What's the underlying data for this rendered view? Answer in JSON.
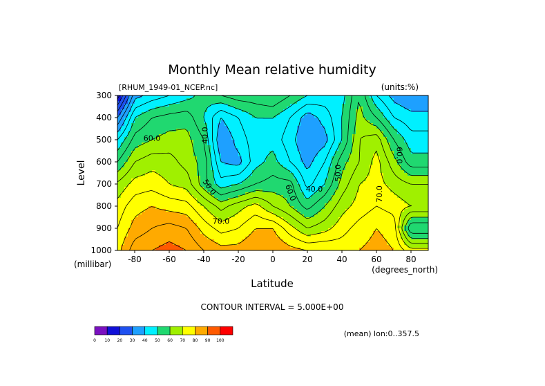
{
  "chart_data": {
    "type": "heatmap",
    "subtype": "filled-contour",
    "title": "Monthly Mean relative humidity",
    "file_label": "[RHUM_1949-01_NCEP.nc]",
    "units_label": "(units:%)",
    "xlabel": "Latitude",
    "x_units_label": "(degrees_north)",
    "ylabel": "Level",
    "y_units_label": "(millibar)",
    "xlim": [
      -90,
      90
    ],
    "ylim": [
      1000,
      300
    ],
    "x_ticks": [
      -80,
      -60,
      -40,
      -20,
      0,
      20,
      40,
      60,
      80
    ],
    "y_ticks": [
      300,
      400,
      500,
      600,
      700,
      800,
      900,
      1000
    ],
    "contour_interval_text": "CONTOUR INTERVAL = 5.000E+00",
    "mean_note": "(mean) lon:0..357.5",
    "colorbar": {
      "ticks": [
        "0",
        "10",
        "20",
        "30",
        "40",
        "50",
        "60",
        "70",
        "80",
        "90",
        "100"
      ],
      "colors": [
        "#7a10c0",
        "#1010d8",
        "#1e50f0",
        "#1ea0ff",
        "#00f0ff",
        "#20d870",
        "#a0f000",
        "#ffff00",
        "#ffaa00",
        "#ff5a00",
        "#ff0000"
      ]
    },
    "contour_labels": [
      {
        "text": "60.0",
        "lat": -70,
        "lev": 495,
        "rot": 0
      },
      {
        "text": "40.0",
        "lat": -39,
        "lev": 480,
        "rot": -90
      },
      {
        "text": "50.0",
        "lat": -37,
        "lev": 715,
        "rot": 55
      },
      {
        "text": "70.0",
        "lat": -30,
        "lev": 870,
        "rot": 0
      },
      {
        "text": "60.0",
        "lat": 10,
        "lev": 740,
        "rot": 70
      },
      {
        "text": "40.0",
        "lat": 24,
        "lev": 725,
        "rot": 0
      },
      {
        "text": "50.0",
        "lat": 38,
        "lev": 650,
        "rot": -90
      },
      {
        "text": "70.0",
        "lat": 62,
        "lev": 745,
        "rot": -90
      },
      {
        "text": "60.0",
        "lat": 73,
        "lev": 570,
        "rot": 90
      }
    ],
    "lat_grid": [
      -90,
      -80,
      -70,
      -60,
      -50,
      -40,
      -30,
      -20,
      -10,
      0,
      10,
      20,
      30,
      40,
      50,
      60,
      70,
      80,
      90
    ],
    "lev_grid": [
      300,
      400,
      500,
      600,
      700,
      800,
      900,
      1000
    ],
    "values": [
      [
        12,
        38,
        42,
        45,
        48,
        52,
        55,
        58,
        58,
        60,
        55,
        50,
        48,
        48,
        60,
        45,
        38,
        35,
        35
      ],
      [
        30,
        50,
        55,
        57,
        58,
        50,
        40,
        45,
        50,
        50,
        45,
        37,
        42,
        50,
        62,
        55,
        45,
        42,
        42
      ],
      [
        45,
        57,
        60,
        62,
        62,
        55,
        35,
        42,
        48,
        48,
        42,
        35,
        38,
        50,
        65,
        68,
        55,
        47,
        47
      ],
      [
        55,
        65,
        68,
        67,
        63,
        58,
        40,
        38,
        48,
        52,
        45,
        38,
        45,
        58,
        65,
        72,
        62,
        52,
        52
      ],
      [
        66,
        72,
        73,
        70,
        68,
        57,
        47,
        50,
        55,
        57,
        57,
        43,
        50,
        62,
        70,
        72,
        68,
        65,
        65
      ],
      [
        72,
        78,
        80,
        78,
        77,
        70,
        63,
        68,
        72,
        65,
        60,
        53,
        60,
        68,
        72,
        75,
        73,
        70,
        70
      ],
      [
        75,
        82,
        85,
        87,
        85,
        78,
        73,
        75,
        80,
        80,
        72,
        65,
        68,
        73,
        77,
        80,
        78,
        50,
        50
      ],
      [
        78,
        88,
        90,
        92,
        90,
        85,
        82,
        82,
        85,
        85,
        82,
        80,
        80,
        78,
        80,
        82,
        80,
        72,
        72
      ]
    ]
  }
}
